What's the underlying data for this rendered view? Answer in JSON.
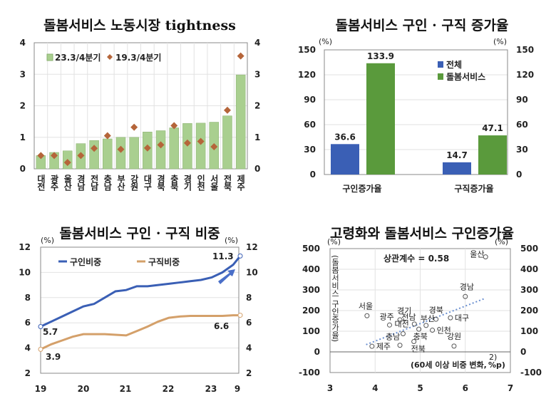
{
  "chart_data": [
    {
      "type": "bar",
      "title": "돌봄서비스 노동시장 tightness",
      "categories": [
        "대전",
        "광주",
        "울산",
        "경남",
        "전남",
        "충남",
        "부산",
        "강원",
        "대구",
        "경북",
        "충북",
        "경기",
        "인천",
        "서울",
        "전북",
        "제주"
      ],
      "series": [
        {
          "name": "23.3/4분기",
          "kind": "bar",
          "color": "#a9cf8f",
          "values": [
            0.42,
            0.52,
            0.57,
            0.8,
            0.9,
            0.95,
            1.0,
            1.0,
            1.17,
            1.21,
            1.3,
            1.44,
            1.45,
            1.48,
            1.68,
            2.98
          ]
        },
        {
          "name": "19.3/4분기",
          "kind": "marker-diamond",
          "color": "#b5653a",
          "values": [
            0.42,
            0.42,
            0.2,
            0.42,
            0.65,
            1.05,
            0.62,
            1.32,
            0.66,
            0.76,
            1.37,
            0.82,
            0.87,
            0.7,
            1.86,
            3.58
          ]
        }
      ],
      "ylim": [
        0,
        4
      ],
      "yticks": [
        "0",
        "1",
        "2",
        "3",
        "4"
      ],
      "secondary_yticks": [
        "0",
        "1",
        "2",
        "3",
        "4"
      ],
      "grid": true,
      "legend": "top-left"
    },
    {
      "type": "bar",
      "title": "돌봄서비스 구인 · 구직 증가율",
      "categories": [
        "구인증가율",
        "구직증가율"
      ],
      "series": [
        {
          "name": "전체",
          "color": "#3a5fb5",
          "values": [
            36.6,
            14.7
          ],
          "labels": [
            "36.6",
            "14.7"
          ]
        },
        {
          "name": "돌봄서비스",
          "color": "#5a9a3c",
          "values": [
            133.9,
            47.1
          ],
          "labels": [
            "133.9",
            "47.1"
          ]
        }
      ],
      "highlight_label_color": "#d03030",
      "ylim": [
        0,
        150
      ],
      "yticks": [
        "0",
        "30",
        "60",
        "90",
        "120",
        "150"
      ],
      "unit_left": "(%)",
      "unit_right": "(%)",
      "grid": true,
      "legend": "top-right"
    },
    {
      "type": "line",
      "title": "돌봄서비스 구인 · 구직 비중",
      "x": [
        "2019-01",
        "2019-04",
        "2019-07",
        "2019-10",
        "2020-01",
        "2020-04",
        "2020-07",
        "2020-10",
        "2021-01",
        "2021-04",
        "2021-07",
        "2021-10",
        "2022-01",
        "2022-04",
        "2022-07",
        "2022-10",
        "2023-01",
        "2023-04",
        "2023-07",
        "2023-09"
      ],
      "series": [
        {
          "name": "구인비중",
          "color": "#3a5fb5",
          "values": [
            5.7,
            6.1,
            6.5,
            6.9,
            7.3,
            7.5,
            8.0,
            8.5,
            8.6,
            8.9,
            8.9,
            9.0,
            9.1,
            9.2,
            9.3,
            9.4,
            9.6,
            10.0,
            10.6,
            11.3
          ]
        },
        {
          "name": "구직비중",
          "color": "#d4a06a",
          "values": [
            3.9,
            4.3,
            4.6,
            4.9,
            5.1,
            5.1,
            5.1,
            5.05,
            5.0,
            5.35,
            5.7,
            6.1,
            6.4,
            6.5,
            6.55,
            6.55,
            6.55,
            6.55,
            6.6,
            6.6
          ]
        }
      ],
      "point_labels": [
        "5.7",
        "3.9",
        "11.3",
        "6.6"
      ],
      "xticks": [
        "19",
        "20",
        "21",
        "22",
        "23",
        "9"
      ],
      "ylim": [
        2,
        12
      ],
      "yticks": [
        "2",
        "4",
        "6",
        "8",
        "10",
        "12"
      ],
      "unit_left": "(%)",
      "unit_right": "(%)",
      "grid": true,
      "legend": "top-left"
    },
    {
      "type": "scatter",
      "title": "고령화와 돌봄서비스 구인증가율",
      "points": [
        {
          "label": "울산",
          "x": 6.45,
          "y": 460
        },
        {
          "label": "경남",
          "x": 6.0,
          "y": 268
        },
        {
          "label": "서울",
          "x": 3.82,
          "y": 175
        },
        {
          "label": "광주",
          "x": 4.32,
          "y": 130
        },
        {
          "label": "경기",
          "x": 4.55,
          "y": 155
        },
        {
          "label": "대전",
          "x": 4.62,
          "y": 88
        },
        {
          "label": "전남",
          "x": 4.87,
          "y": 135
        },
        {
          "label": "부산",
          "x": 5.13,
          "y": 128
        },
        {
          "label": "경북",
          "x": 5.35,
          "y": 158
        },
        {
          "label": "대구",
          "x": 5.67,
          "y": 165
        },
        {
          "label": "인천",
          "x": 5.27,
          "y": 105
        },
        {
          "label": "충북",
          "x": 4.97,
          "y": 110
        },
        {
          "label": "충남",
          "x": 4.55,
          "y": 32
        },
        {
          "label": "전북",
          "x": 4.86,
          "y": 50
        },
        {
          "label": "강원",
          "x": 5.75,
          "y": 28
        },
        {
          "label": "제주",
          "x": 3.93,
          "y": 27
        }
      ],
      "trendline": [
        [
          3.8,
          35
        ],
        [
          6.45,
          260
        ]
      ],
      "annotation": "상관계수 = 0.58",
      "annotation_color": "#d03030",
      "xlabel": "(60세 이상 비중 변화,",
      "xlabel_sup": "2)",
      "xlabel_unit": "%p)",
      "ylabel": "(돌봄서비스 구인증가율)",
      "xlim": [
        3,
        7
      ],
      "ylim": [
        -100,
        500
      ],
      "xticks": [
        "3",
        "4",
        "5",
        "6",
        "7"
      ],
      "yticks": [
        "-100",
        "0",
        "100",
        "200",
        "300",
        "400",
        "500"
      ],
      "unit_left": "(%)",
      "unit_right": "(%)",
      "grid": true
    }
  ]
}
